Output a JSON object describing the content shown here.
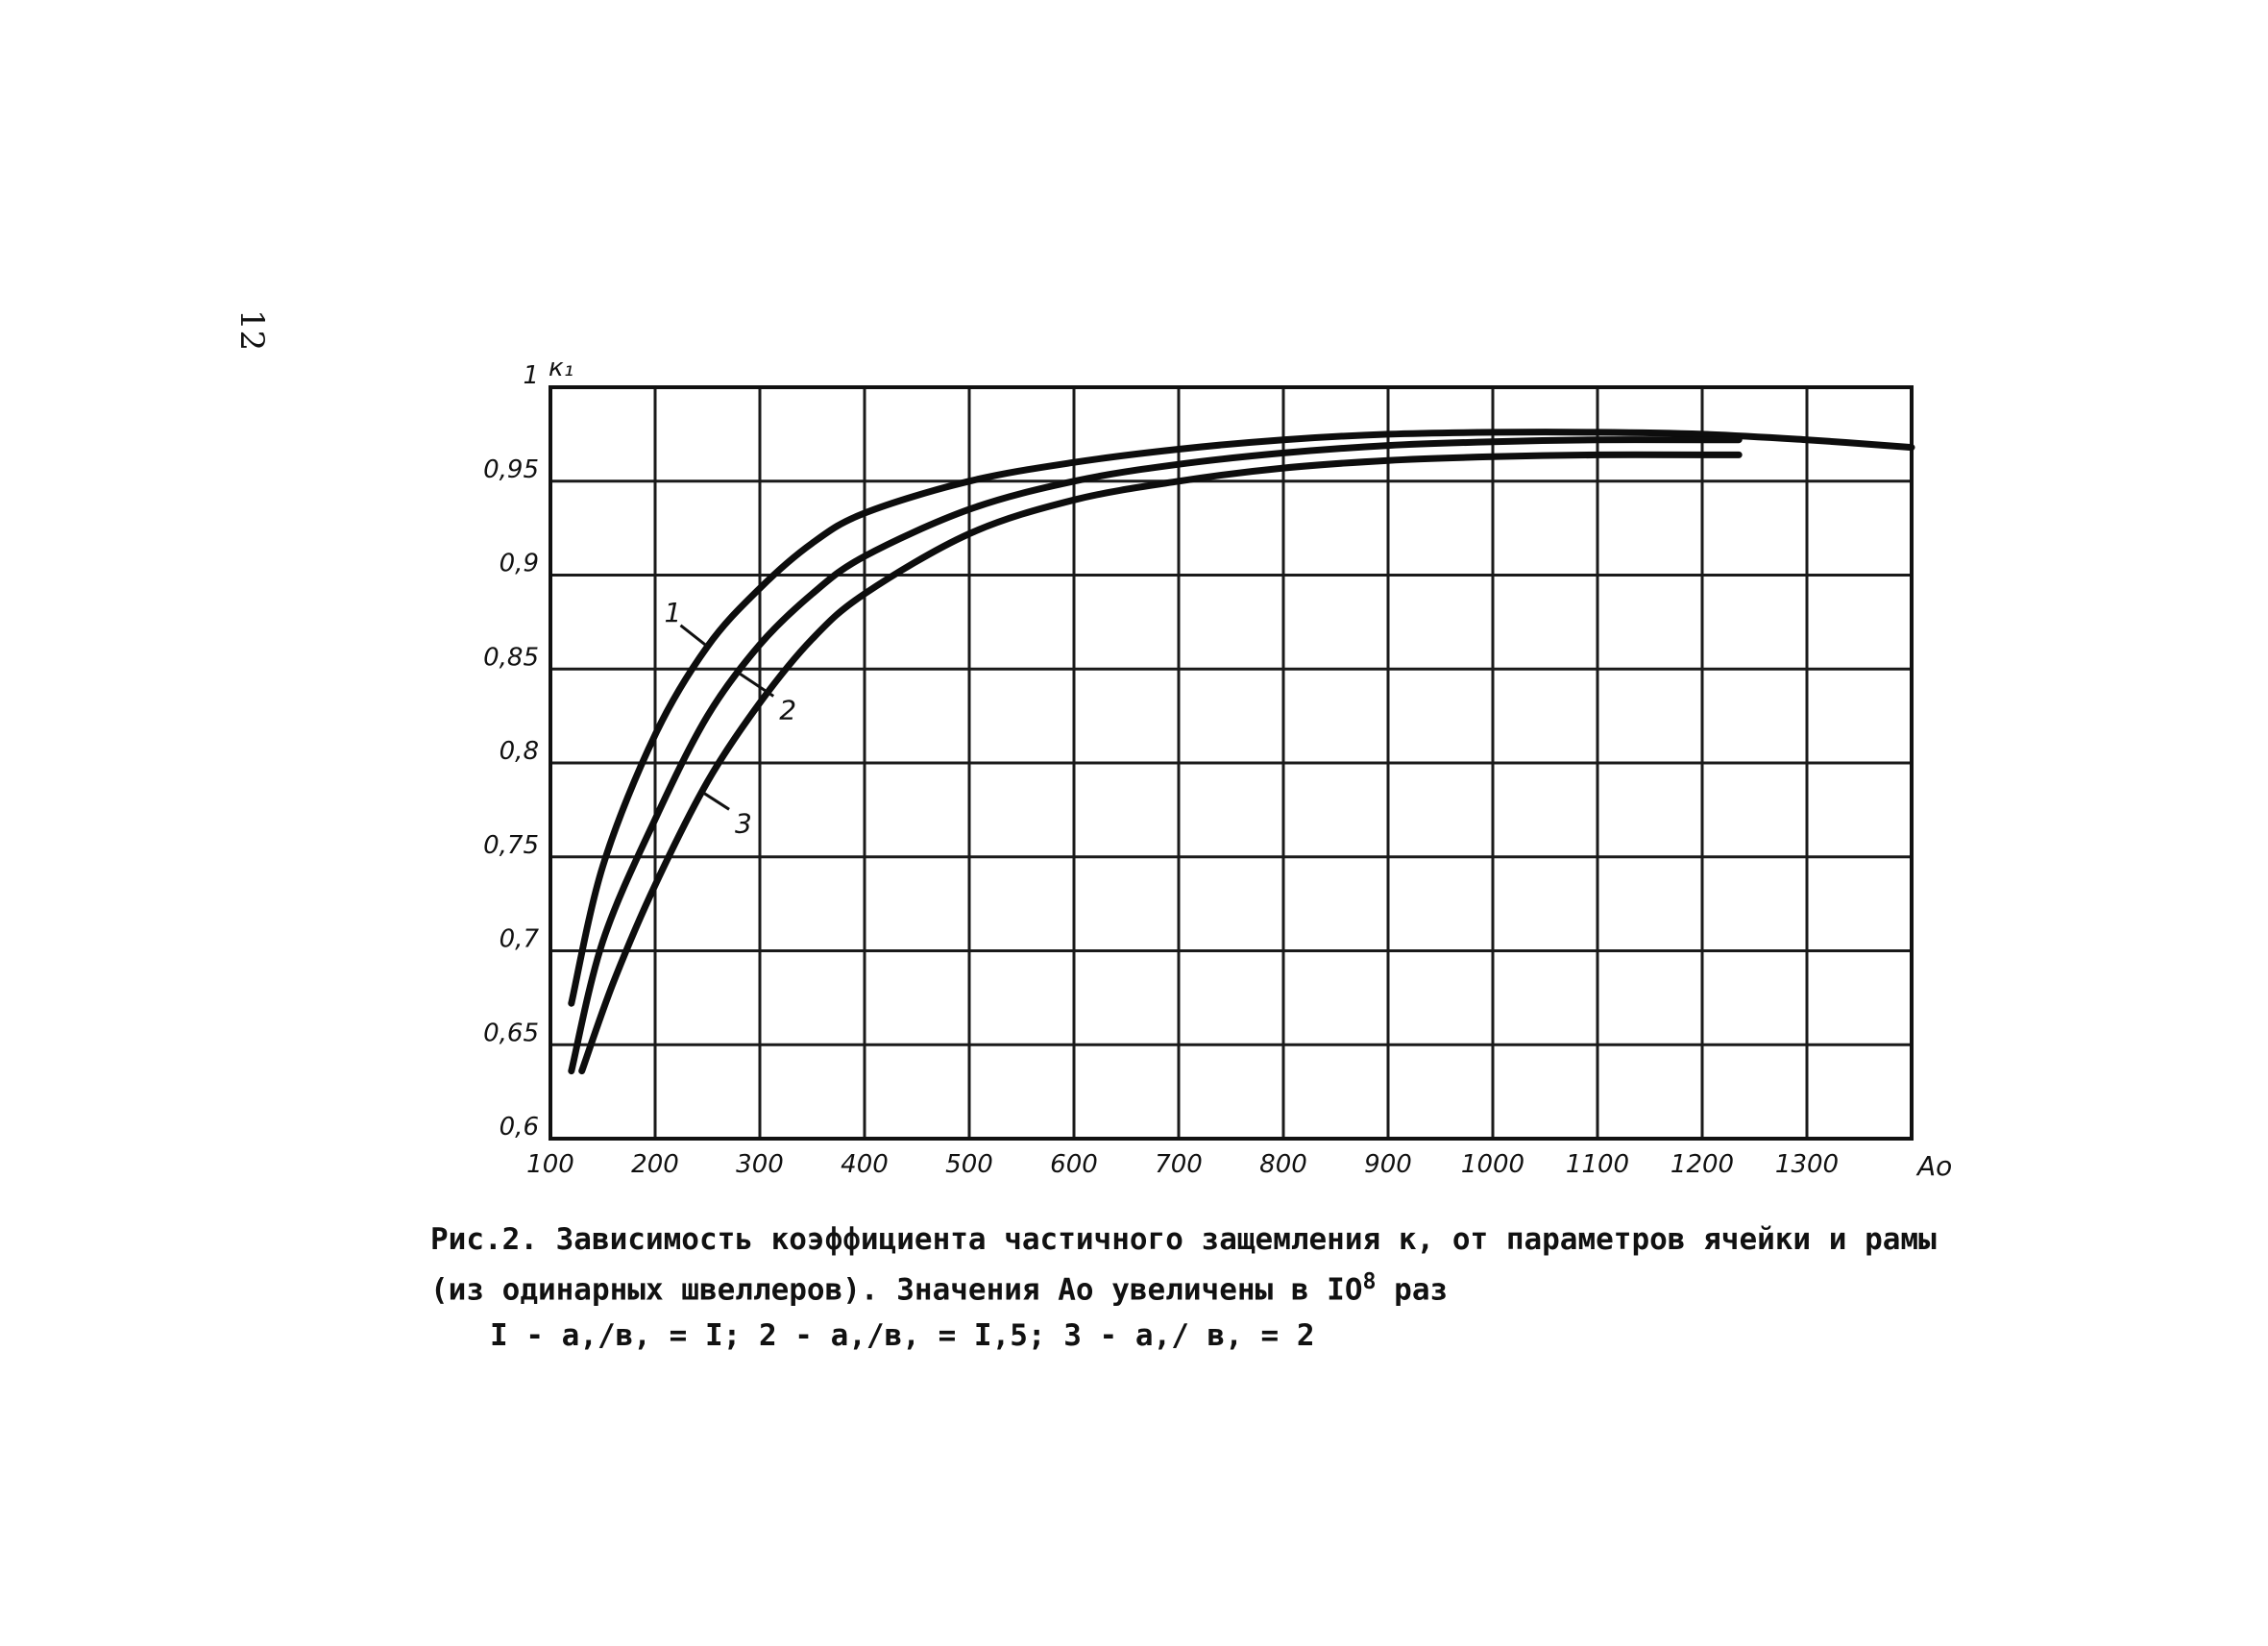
{
  "page_number": "12",
  "caption": {
    "line1": "Рис.2. Зависимость коэффициента частичного защемления к, от параметров ячейки и рамы",
    "line2_prefix": "(из одинарных швеллеров). Значения Ао увеличены в IO",
    "line2_sup": "8",
    "line2_suffix": " раз",
    "line3": "I - а,/в, = I; 2 - а,/в, = I,5; 3 - а,/ в, = 2"
  },
  "chart_data": {
    "type": "line",
    "title": "",
    "xlabel": "Ао",
    "ylabel": "к₁",
    "xlim": [
      100,
      1400
    ],
    "ylim": [
      0.6,
      1.0
    ],
    "x_ticks": [
      "100",
      "200",
      "300",
      "400",
      "500",
      "600",
      "700",
      "800",
      "900",
      "1000",
      "1100",
      "1200",
      "1300"
    ],
    "y_ticks": [
      "0,6",
      "0,65",
      "0,7",
      "0,75",
      "0,8",
      "0,85",
      "0,9",
      "0,95",
      "1"
    ],
    "grid": true,
    "series": [
      {
        "name": "1",
        "x": [
          120,
          150,
          200,
          250,
          300,
          350,
          400,
          500,
          600,
          700,
          800,
          900,
          1000,
          1100,
          1200,
          1300,
          1400
        ],
        "y": [
          0.672,
          0.745,
          0.815,
          0.862,
          0.893,
          0.917,
          0.933,
          0.95,
          0.96,
          0.967,
          0.972,
          0.975,
          0.976,
          0.976,
          0.975,
          0.972,
          0.968
        ]
      },
      {
        "name": "2",
        "x": [
          120,
          150,
          200,
          250,
          300,
          350,
          400,
          500,
          600,
          700,
          800,
          900,
          1000,
          1100,
          1200,
          1235
        ],
        "y": [
          0.636,
          0.705,
          0.77,
          0.825,
          0.863,
          0.89,
          0.91,
          0.935,
          0.95,
          0.959,
          0.965,
          0.969,
          0.971,
          0.972,
          0.972,
          0.972
        ]
      },
      {
        "name": "3",
        "x": [
          130,
          160,
          200,
          250,
          300,
          350,
          400,
          500,
          600,
          700,
          800,
          900,
          1000,
          1100,
          1200,
          1235
        ],
        "y": [
          0.636,
          0.683,
          0.735,
          0.79,
          0.832,
          0.866,
          0.89,
          0.922,
          0.94,
          0.95,
          0.957,
          0.961,
          0.963,
          0.964,
          0.964,
          0.964
        ]
      }
    ]
  }
}
